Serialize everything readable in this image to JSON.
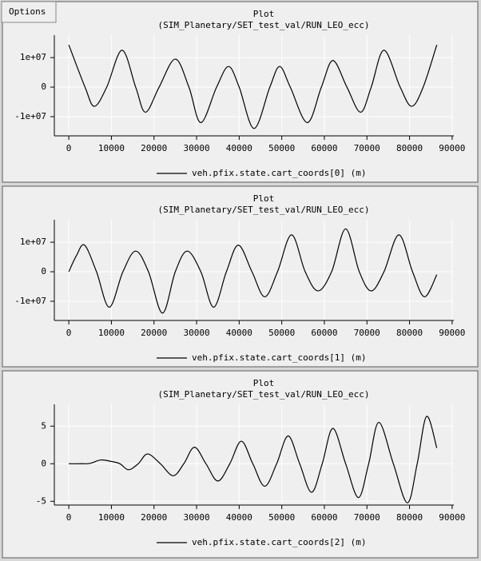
{
  "menu": {
    "options": "Options"
  },
  "chart_data": [
    {
      "type": "line",
      "title": "Plot",
      "subtitle": "(SIM_Planetary/SET_test_val/RUN_LEO_ecc)",
      "x": [
        0,
        3800,
        6000,
        8900,
        12500,
        15700,
        18000,
        21200,
        25000,
        28200,
        31000,
        34700,
        37500,
        40000,
        43500,
        47200,
        49500,
        52000,
        56000,
        59300,
        62000,
        65300,
        68500,
        71000,
        74000,
        77800,
        80500,
        83200,
        86400
      ],
      "series": [
        {
          "name": "veh.pfix.state.cart_coords[0] (m)",
          "color": "#000000",
          "values": [
            14300000,
            0,
            -6500000,
            0,
            12500000,
            0,
            -8500000,
            0,
            9500000,
            0,
            -12000000,
            0,
            7000000,
            0,
            -14000000,
            0,
            7000000,
            0,
            -12000000,
            0,
            9000000,
            0,
            -8500000,
            0,
            12500000,
            0,
            -6500000,
            0,
            14300000
          ]
        }
      ],
      "xlim": [
        -3400,
        90400
      ],
      "xticks": [
        0,
        10000,
        20000,
        30000,
        40000,
        50000,
        60000,
        70000,
        80000,
        90000
      ],
      "ylim": [
        -16500000,
        17600000
      ],
      "yticks": [
        {
          "value": -10000000,
          "label": "-1e+07"
        },
        0,
        {
          "value": 10000000,
          "label": "1e+07"
        }
      ],
      "grid": true
    },
    {
      "type": "line",
      "title": "Plot",
      "subtitle": "(SIM_Planetary/SET_test_val/RUN_LEO_ecc)",
      "x": [
        0,
        1800,
        3700,
        6500,
        9500,
        12700,
        15700,
        18700,
        22000,
        25000,
        27800,
        31000,
        34000,
        37000,
        39800,
        43000,
        46000,
        49000,
        52300,
        55500,
        58500,
        61700,
        65000,
        68200,
        71000,
        74000,
        77500,
        80700,
        83500,
        86400
      ],
      "series": [
        {
          "name": "veh.pfix.state.cart_coords[1] (m)",
          "color": "#000000",
          "values": [
            0,
            5500000,
            9000000,
            0,
            -12000000,
            0,
            7000000,
            0,
            -14000000,
            0,
            7000000,
            0,
            -12000000,
            0,
            9000000,
            0,
            -8500000,
            0,
            12500000,
            0,
            -6500000,
            0,
            14500000,
            0,
            -6500000,
            0,
            12500000,
            0,
            -8500000,
            -1000000
          ]
        }
      ],
      "xlim": [
        -3400,
        90400
      ],
      "xticks": [
        0,
        10000,
        20000,
        30000,
        40000,
        50000,
        60000,
        70000,
        80000,
        90000
      ],
      "ylim": [
        -16500000,
        17600000
      ],
      "yticks": [
        {
          "value": -10000000,
          "label": "-1e+07"
        },
        0,
        {
          "value": 10000000,
          "label": "1e+07"
        }
      ],
      "grid": true
    },
    {
      "type": "line",
      "title": "Plot",
      "subtitle": "(SIM_Planetary/SET_test_val/RUN_LEO_ecc)",
      "x": [
        0,
        3000,
        5000,
        7500,
        10000,
        12000,
        14000,
        16300,
        18500,
        21500,
        24500,
        27000,
        29500,
        32200,
        35000,
        37800,
        40500,
        43200,
        46000,
        48800,
        51500,
        54200,
        57000,
        59500,
        62000,
        65000,
        68000,
        70400,
        72800,
        76200,
        79500,
        81800,
        84000,
        86400
      ],
      "series": [
        {
          "name": "veh.pfix.state.cart_coords[2] (m)",
          "color": "#000000",
          "values": [
            0,
            0,
            0.05,
            0.5,
            0.3,
            0,
            -0.8,
            0,
            1.3,
            0,
            -1.6,
            0,
            2.2,
            0,
            -2.3,
            0,
            3.0,
            0,
            -3.0,
            0,
            3.7,
            0,
            -3.8,
            0,
            4.7,
            0,
            -4.5,
            0,
            5.5,
            0,
            -5.2,
            0,
            6.3,
            2.1
          ]
        }
      ],
      "xlim": [
        -3400,
        90400
      ],
      "xticks": [
        0,
        10000,
        20000,
        30000,
        40000,
        50000,
        60000,
        70000,
        80000,
        90000
      ],
      "ylim": [
        -5.5,
        7.9
      ],
      "yticks": [
        -5,
        0,
        5
      ],
      "grid": true
    }
  ]
}
